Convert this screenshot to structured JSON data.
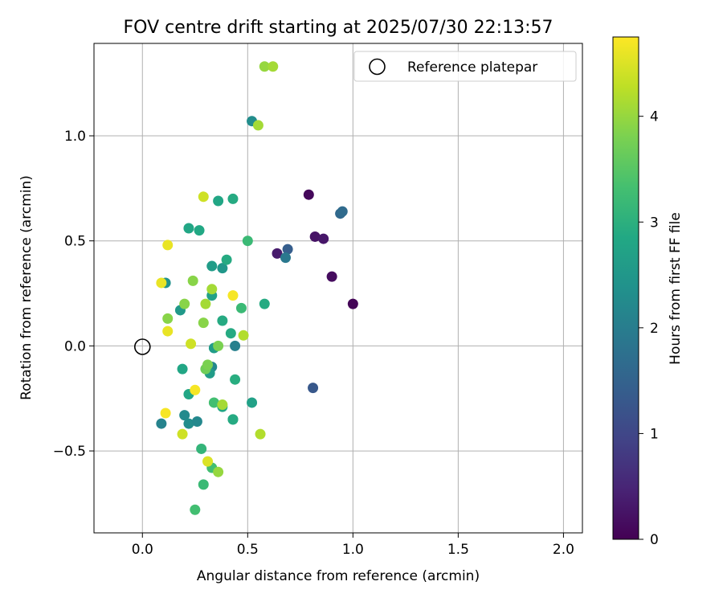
{
  "chart_data": {
    "type": "scatter",
    "title": "FOV centre drift starting at 2025/07/30 22:13:57",
    "xlabel": "Angular distance from reference (arcmin)",
    "ylabel": "Rotation from reference (arcmin)",
    "xlim": [
      -0.23,
      2.09
    ],
    "ylim": [
      -0.89,
      1.44
    ],
    "xticks": [
      0.0,
      0.5,
      1.0,
      1.5,
      2.0
    ],
    "xtick_labels": [
      "0.0",
      "0.5",
      "1.0",
      "1.5",
      "2.0"
    ],
    "yticks": [
      -0.5,
      0.0,
      0.5,
      1.0
    ],
    "ytick_labels": [
      "−0.5",
      "0.0",
      "0.5",
      "1.0"
    ],
    "grid": true,
    "legend": {
      "position": "top-right",
      "entries": [
        "Reference platepar"
      ]
    },
    "reference_point": {
      "x": 0.0,
      "y": 0.0,
      "marker": "open-circle"
    },
    "colorbar": {
      "label": "Hours from first FF file",
      "range": [
        0,
        4.75
      ],
      "ticks": [
        0,
        1,
        2,
        3,
        4
      ],
      "tick_labels": [
        "0",
        "1",
        "2",
        "3",
        "4"
      ],
      "colormap": "viridis"
    },
    "points": [
      {
        "x": 1.0,
        "y": 0.2,
        "t": 0.05
      },
      {
        "x": 0.9,
        "y": 0.33,
        "t": 0.15
      },
      {
        "x": 0.79,
        "y": 0.72,
        "t": 0.1
      },
      {
        "x": 0.82,
        "y": 0.52,
        "t": 0.25
      },
      {
        "x": 0.86,
        "y": 0.51,
        "t": 0.3
      },
      {
        "x": 0.64,
        "y": 0.44,
        "t": 0.35
      },
      {
        "x": 0.81,
        "y": -0.2,
        "t": 1.3
      },
      {
        "x": 0.69,
        "y": 0.46,
        "t": 1.4
      },
      {
        "x": 0.68,
        "y": 0.42,
        "t": 1.9
      },
      {
        "x": 0.94,
        "y": 0.63,
        "t": 1.6
      },
      {
        "x": 0.95,
        "y": 0.64,
        "t": 1.65
      },
      {
        "x": 0.44,
        "y": 0.0,
        "t": 2.05
      },
      {
        "x": 0.52,
        "y": 1.07,
        "t": 2.3
      },
      {
        "x": 0.09,
        "y": -0.37,
        "t": 2.1
      },
      {
        "x": 0.2,
        "y": -0.33,
        "t": 2.25
      },
      {
        "x": 0.22,
        "y": -0.37,
        "t": 2.3
      },
      {
        "x": 0.26,
        "y": -0.36,
        "t": 2.2
      },
      {
        "x": 0.11,
        "y": 0.3,
        "t": 2.4
      },
      {
        "x": 0.33,
        "y": -0.1,
        "t": 2.2
      },
      {
        "x": 0.32,
        "y": -0.13,
        "t": 2.6
      },
      {
        "x": 0.33,
        "y": 0.38,
        "t": 2.6
      },
      {
        "x": 0.38,
        "y": 0.37,
        "t": 2.5
      },
      {
        "x": 0.18,
        "y": 0.17,
        "t": 2.55
      },
      {
        "x": 0.33,
        "y": 0.24,
        "t": 2.7
      },
      {
        "x": 0.19,
        "y": -0.11,
        "t": 2.8
      },
      {
        "x": 0.22,
        "y": -0.23,
        "t": 2.8
      },
      {
        "x": 0.34,
        "y": -0.01,
        "t": 2.6
      },
      {
        "x": 0.36,
        "y": 0.69,
        "t": 2.8
      },
      {
        "x": 0.43,
        "y": 0.7,
        "t": 2.9
      },
      {
        "x": 0.22,
        "y": 0.56,
        "t": 2.8
      },
      {
        "x": 0.27,
        "y": 0.55,
        "t": 2.85
      },
      {
        "x": 0.4,
        "y": 0.41,
        "t": 2.9
      },
      {
        "x": 0.38,
        "y": 0.12,
        "t": 2.9
      },
      {
        "x": 0.42,
        "y": 0.06,
        "t": 2.9
      },
      {
        "x": 0.44,
        "y": -0.16,
        "t": 2.95
      },
      {
        "x": 0.43,
        "y": -0.35,
        "t": 2.95
      },
      {
        "x": 0.43,
        "y": -0.35,
        "t": 2.9
      },
      {
        "x": 0.38,
        "y": -0.29,
        "t": 2.8
      },
      {
        "x": 0.52,
        "y": -0.27,
        "t": 2.7
      },
      {
        "x": 0.58,
        "y": 0.2,
        "t": 2.9
      },
      {
        "x": 0.47,
        "y": 0.18,
        "t": 3.2
      },
      {
        "x": 0.5,
        "y": 0.5,
        "t": 3.2
      },
      {
        "x": 0.34,
        "y": -0.27,
        "t": 3.3
      },
      {
        "x": 0.29,
        "y": -0.66,
        "t": 3.2
      },
      {
        "x": 0.28,
        "y": -0.49,
        "t": 3.1
      },
      {
        "x": 0.25,
        "y": -0.78,
        "t": 3.3
      },
      {
        "x": 0.33,
        "y": -0.58,
        "t": 3.3
      },
      {
        "x": 0.24,
        "y": 0.31,
        "t": 3.9
      },
      {
        "x": 0.3,
        "y": -0.11,
        "t": 3.7
      },
      {
        "x": 0.31,
        "y": -0.09,
        "t": 3.8
      },
      {
        "x": 0.36,
        "y": 0.0,
        "t": 3.8
      },
      {
        "x": 0.12,
        "y": 0.13,
        "t": 3.9
      },
      {
        "x": 0.2,
        "y": 0.2,
        "t": 3.9
      },
      {
        "x": 0.29,
        "y": 0.11,
        "t": 3.9
      },
      {
        "x": 0.3,
        "y": 0.2,
        "t": 4.1
      },
      {
        "x": 0.33,
        "y": 0.27,
        "t": 4.1
      },
      {
        "x": 0.48,
        "y": 0.05,
        "t": 4.2
      },
      {
        "x": 0.38,
        "y": -0.28,
        "t": 4.1
      },
      {
        "x": 0.36,
        "y": -0.6,
        "t": 4.0
      },
      {
        "x": 0.56,
        "y": -0.42,
        "t": 4.2
      },
      {
        "x": 0.19,
        "y": -0.42,
        "t": 4.4
      },
      {
        "x": 0.58,
        "y": 1.33,
        "t": 4.0
      },
      {
        "x": 0.62,
        "y": 1.33,
        "t": 4.1
      },
      {
        "x": 0.55,
        "y": 1.05,
        "t": 4.1
      },
      {
        "x": 0.29,
        "y": 0.71,
        "t": 4.4
      },
      {
        "x": 0.23,
        "y": 0.01,
        "t": 4.4
      },
      {
        "x": 0.31,
        "y": -0.55,
        "t": 4.5
      },
      {
        "x": 0.12,
        "y": 0.48,
        "t": 4.6
      },
      {
        "x": 0.09,
        "y": 0.3,
        "t": 4.6
      },
      {
        "x": 0.12,
        "y": 0.07,
        "t": 4.6
      },
      {
        "x": 0.43,
        "y": 0.24,
        "t": 4.7
      },
      {
        "x": 0.25,
        "y": -0.21,
        "t": 4.7
      },
      {
        "x": 0.11,
        "y": -0.32,
        "t": 4.7
      }
    ]
  }
}
